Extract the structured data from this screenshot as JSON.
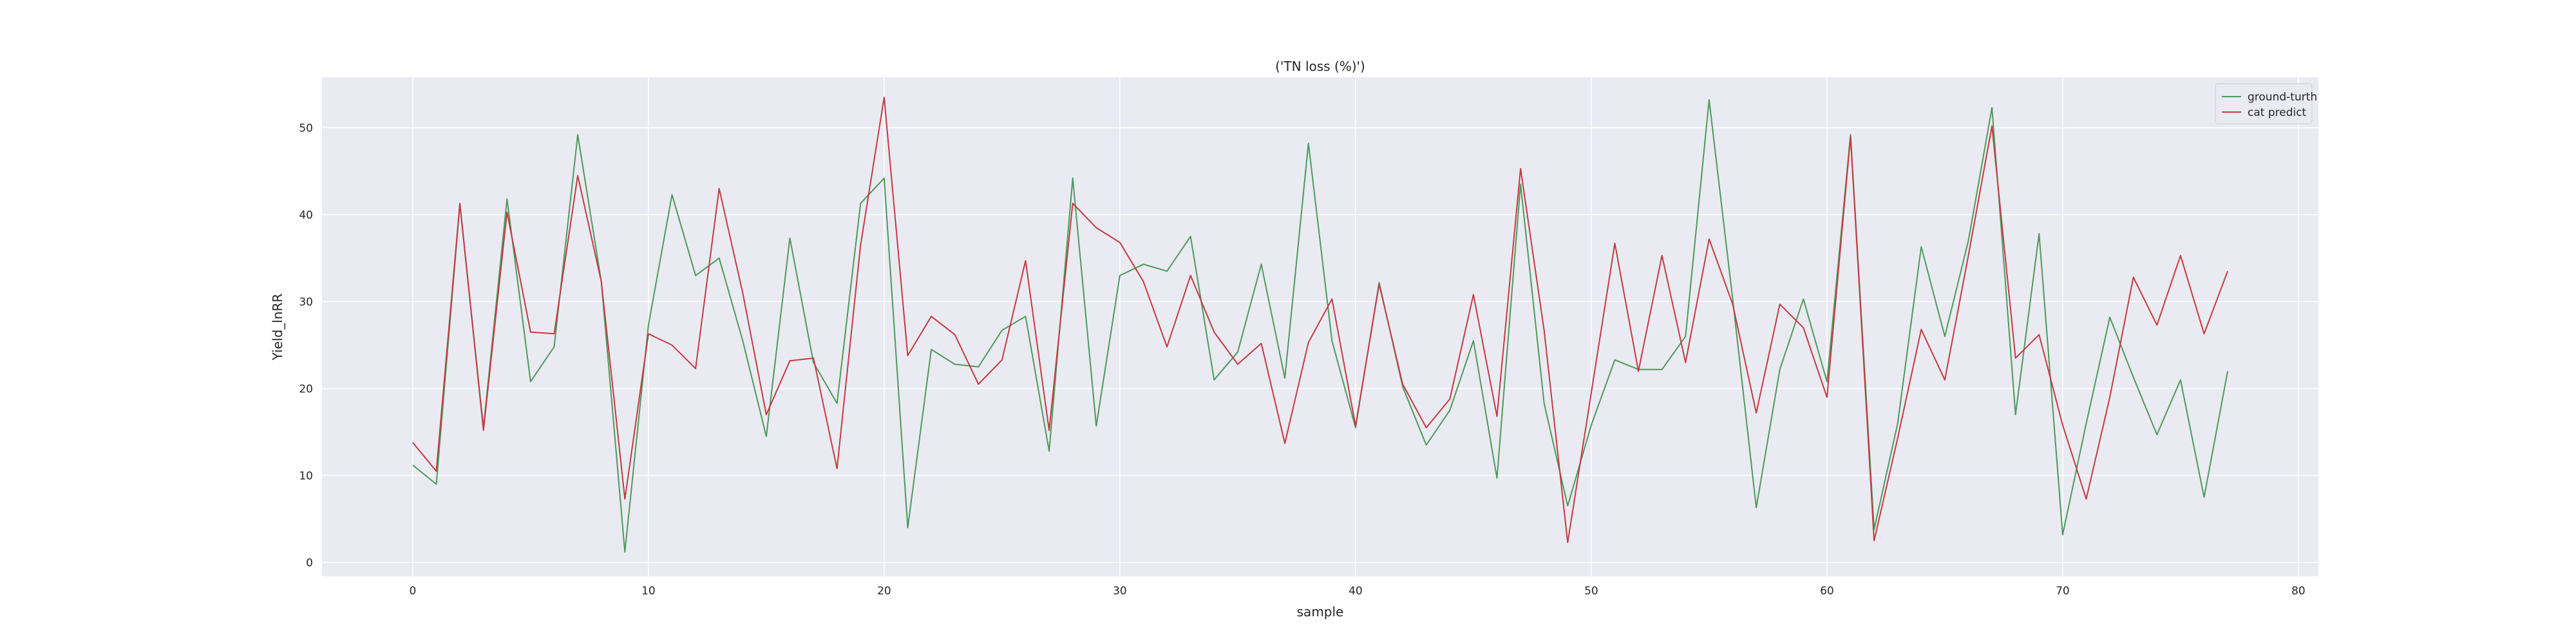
{
  "chart_data": {
    "type": "line",
    "title": "('TN loss (%)')",
    "xlabel": "sample",
    "ylabel": "Yield_lnRR",
    "xlim": [
      -3.85,
      80.85
    ],
    "ylim": [
      -1.6,
      55.8
    ],
    "xticks": [
      0,
      10,
      20,
      30,
      40,
      50,
      60,
      70,
      80
    ],
    "yticks": [
      0,
      10,
      20,
      30,
      40,
      50
    ],
    "grid": true,
    "legend_position": "top-right",
    "x": [
      0,
      1,
      2,
      3,
      4,
      5,
      6,
      7,
      8,
      9,
      10,
      11,
      12,
      13,
      14,
      15,
      16,
      17,
      18,
      19,
      20,
      21,
      22,
      23,
      24,
      25,
      26,
      27,
      28,
      29,
      30,
      31,
      32,
      33,
      34,
      35,
      36,
      37,
      38,
      39,
      40,
      41,
      42,
      43,
      44,
      45,
      46,
      47,
      48,
      49,
      50,
      51,
      52,
      53,
      54,
      55,
      56,
      57,
      58,
      59,
      60,
      61,
      62,
      63,
      64,
      65,
      66,
      67,
      68,
      69,
      70,
      71,
      72,
      73,
      74,
      75,
      76,
      77
    ],
    "series": [
      {
        "name": "ground-turth",
        "color": "#4c9a5a",
        "values": [
          11.2,
          9.0,
          41.2,
          15.5,
          41.8,
          20.8,
          24.8,
          49.2,
          32.3,
          1.2,
          27.3,
          42.3,
          33.0,
          35.0,
          25.5,
          14.5,
          37.3,
          23.0,
          18.3,
          41.3,
          44.2,
          4.0,
          24.5,
          22.8,
          22.5,
          26.7,
          28.3,
          12.8,
          44.2,
          15.7,
          33.0,
          34.3,
          33.5,
          37.5,
          21.0,
          24.2,
          34.3,
          21.2,
          48.2,
          25.5,
          15.5,
          32.2,
          20.2,
          13.5,
          17.5,
          25.5,
          9.7,
          43.5,
          18.3,
          6.5,
          15.8,
          23.3,
          22.2,
          22.2,
          26.0,
          53.2,
          30.3,
          6.3,
          22.2,
          30.3,
          20.8,
          49.2,
          3.8,
          16.0,
          36.3,
          26.0,
          37.0,
          52.3,
          17.0,
          37.8,
          3.2,
          16.0,
          28.2,
          21.3,
          14.7,
          21.0,
          7.5,
          22.0
        ]
      },
      {
        "name": "cat predict",
        "color": "#c23b40",
        "values": [
          13.8,
          10.5,
          41.3,
          15.2,
          40.3,
          26.5,
          26.3,
          44.5,
          32.3,
          7.3,
          26.3,
          25.0,
          22.3,
          43.0,
          31.0,
          17.0,
          23.2,
          23.5,
          10.8,
          36.5,
          53.5,
          23.8,
          28.3,
          26.2,
          20.5,
          23.3,
          34.7,
          15.2,
          41.3,
          38.5,
          36.8,
          32.3,
          24.8,
          33.0,
          26.5,
          22.8,
          25.2,
          13.7,
          25.3,
          30.3,
          15.7,
          32.0,
          20.5,
          15.5,
          18.8,
          30.8,
          16.8,
          45.3,
          26.7,
          2.3,
          19.5,
          36.7,
          22.0,
          35.3,
          23.0,
          37.2,
          29.7,
          17.2,
          29.7,
          27.0,
          19.0,
          49.0,
          2.5,
          14.3,
          26.8,
          21.0,
          35.3,
          50.2,
          23.5,
          26.2,
          15.8,
          7.3,
          19.0,
          32.8,
          27.3,
          35.3,
          26.3,
          33.5
        ]
      }
    ]
  }
}
